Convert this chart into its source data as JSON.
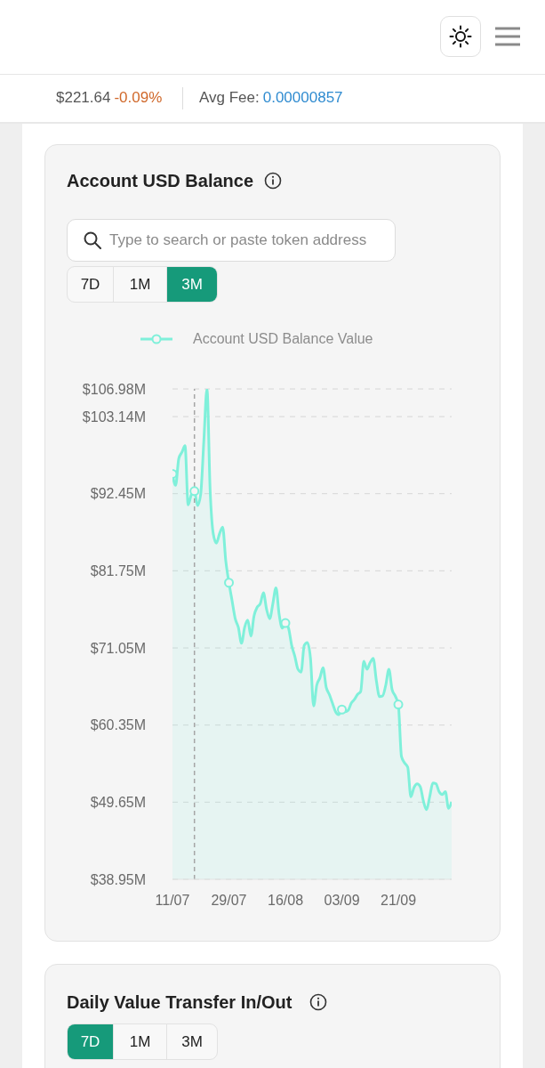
{
  "chart_data": {
    "type": "area",
    "title": "Account USD Balance",
    "x": [
      "--07-11",
      "--07-12",
      "--07-13",
      "--07-14",
      "--07-15",
      "--07-16",
      "--07-17",
      "--07-18",
      "--07-19",
      "--07-20",
      "--07-21",
      "--07-22",
      "--07-23",
      "--07-24",
      "--07-25",
      "--07-26",
      "--07-27",
      "--07-28",
      "--07-29",
      "--07-30",
      "--07-31",
      "--08-01",
      "--08-02",
      "--08-03",
      "--08-04",
      "--08-05",
      "--08-06",
      "--08-07",
      "--08-08",
      "--08-09",
      "--08-10",
      "--08-11",
      "--08-12",
      "--08-13",
      "--08-14",
      "--08-15",
      "--08-16",
      "--08-17",
      "--08-18",
      "--08-19",
      "--08-20",
      "--08-21",
      "--08-22",
      "--08-23",
      "--08-24",
      "--08-25",
      "--08-26",
      "--08-27",
      "--08-28",
      "--08-29",
      "--08-30",
      "--08-31",
      "--09-01",
      "--09-02",
      "--09-03",
      "--09-04",
      "--09-05",
      "--09-06",
      "--09-07",
      "--09-08",
      "--09-09",
      "--09-10",
      "--09-11",
      "--09-12",
      "--09-13",
      "--09-14",
      "--09-15",
      "--09-16",
      "--09-17",
      "--09-18",
      "--09-19",
      "--09-20",
      "--09-21",
      "--09-22",
      "--09-23",
      "--09-24",
      "--09-25",
      "--09-26",
      "--09-27",
      "--09-28",
      "--09-29",
      "--09-30",
      "--10-01",
      "--10-02",
      "--10-03",
      "--10-04",
      "--10-05",
      "--10-06",
      "--10-07",
      "--10-08"
    ],
    "series": [
      {
        "name": "Account USD Balance Value",
        "color": "#7ff0da",
        "marker": "none",
        "values": [
          95.2,
          93.6,
          97.3,
          98.2,
          99.1,
          90.9,
          92.3,
          92.8,
          90.8,
          92.4,
          99.8,
          106.98,
          93.0,
          86.9,
          85.6,
          86.9,
          87.8,
          83.1,
          80.1,
          77.6,
          75.1,
          73.9,
          71.7,
          73.9,
          74.9,
          72.7,
          75.5,
          76.7,
          77.2,
          78.7,
          76.4,
          75.1,
          77.2,
          79.4,
          75.7,
          73.8,
          74.5,
          73.8,
          71.4,
          69.9,
          68.1,
          67.7,
          71.4,
          71.8,
          69.6,
          63.0,
          65.9,
          66.9,
          68.3,
          65.6,
          64.6,
          63.4,
          62.2,
          61.8,
          62.5,
          62.2,
          62.4,
          63.4,
          63.9,
          64.6,
          65.0,
          69.2,
          68.1,
          69.0,
          69.6,
          66.5,
          64.3,
          64.4,
          65.9,
          68.1,
          65.3,
          64.4,
          63.2,
          56.0,
          55.1,
          54.5,
          50.4,
          51.7,
          52.2,
          51.8,
          49.8,
          48.6,
          50.4,
          52.3,
          52.2,
          51.1,
          50.7,
          51.1,
          48.8,
          49.7
        ]
      },
      {
        "type": "scatter",
        "color": "#7ff0da",
        "x": [
          "--07-11",
          "--07-18",
          "--07-29",
          "--08-16",
          "--09-03",
          "--09-21"
        ],
        "values": [
          95.2,
          92.8,
          80.1,
          74.5,
          62.5,
          63.2
        ]
      }
    ],
    "xlim": [
      "--07-11",
      "--10-08"
    ],
    "xticks": [
      {
        "value": "--07-11",
        "label": "11/07"
      },
      {
        "value": "--07-29",
        "label": "29/07"
      },
      {
        "value": "--08-16",
        "label": "16/08"
      },
      {
        "value": "--09-03",
        "label": "03/09"
      },
      {
        "value": "--09-21",
        "label": "21/09"
      }
    ],
    "ylim": [
      38.95,
      106.98
    ],
    "yticks": [
      {
        "value": 38.95,
        "label": "$38.95M"
      },
      {
        "value": 49.65,
        "label": "$49.65M"
      },
      {
        "value": 60.35,
        "label": "$60.35M"
      },
      {
        "value": 71.05,
        "label": "$71.05M"
      },
      {
        "value": 81.75,
        "label": "$81.75M"
      },
      {
        "value": 92.45,
        "label": "$92.45M"
      },
      {
        "value": 103.14,
        "label": "$103.14M"
      },
      {
        "value": 106.98,
        "label": "$106.98M"
      }
    ],
    "grid": "y",
    "legend": "top",
    "marker": "circle",
    "ref_lines": [
      {
        "axis": "x",
        "value": "--07-18",
        "color": "#a6a6a6",
        "line_style": "dashed"
      }
    ],
    "annotations": [
      "$221.64",
      "-0.09%",
      "Avg Fee:",
      "0.00000857",
      "Type to search or paste token address",
      "7D",
      "1M",
      "3M",
      "Daily Value Transfer In/Out",
      "7D",
      "1M",
      "3M"
    ]
  }
}
